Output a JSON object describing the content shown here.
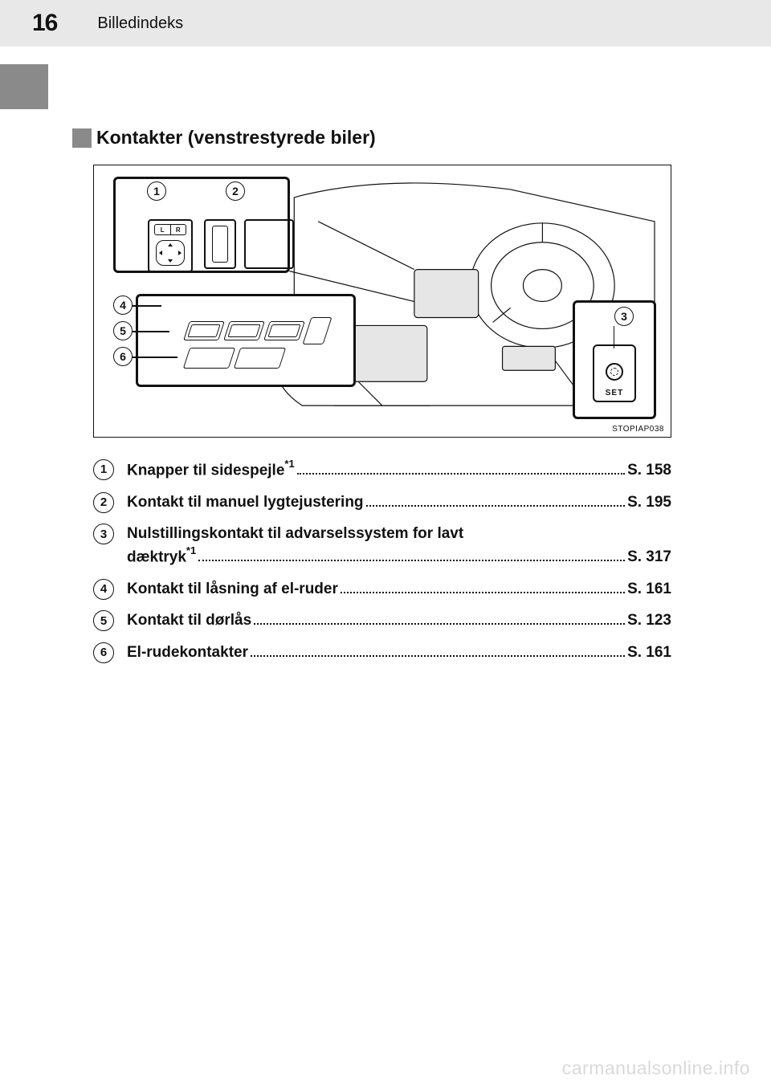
{
  "header": {
    "page_number": "16",
    "section": "Billedindeks"
  },
  "heading": "Kontakter (venstrestyrede biler)",
  "diagram": {
    "set_label": "SET",
    "image_code": "STOPIAP038",
    "mirror_left": "L",
    "mirror_right": "R"
  },
  "items": [
    {
      "num": "1",
      "lines": [
        {
          "text": "Knapper til sidespejle",
          "sup": "*1",
          "page": "S. 158"
        }
      ]
    },
    {
      "num": "2",
      "lines": [
        {
          "text": "Kontakt til manuel lygtejustering",
          "page": "S. 195"
        }
      ]
    },
    {
      "num": "3",
      "lines": [
        {
          "text": "Nulstillingskontakt til advarselssystem for lavt"
        },
        {
          "text": "dæktryk",
          "sup": "*1",
          "page": "S. 317"
        }
      ]
    },
    {
      "num": "4",
      "lines": [
        {
          "text": "Kontakt til låsning af el-ruder",
          "page": "S. 161"
        }
      ]
    },
    {
      "num": "5",
      "lines": [
        {
          "text": "Kontakt til dørlås",
          "page": "S. 123"
        }
      ]
    },
    {
      "num": "6",
      "lines": [
        {
          "text": "El-rudekontakter",
          "page": "S. 161"
        }
      ]
    }
  ],
  "watermark": "carmanualsonline.info",
  "colors": {
    "header_bg": "#e8e8e8",
    "sidebar_block": "#8a8a8a",
    "text": "#111111",
    "watermark": "#d9d9d9"
  }
}
